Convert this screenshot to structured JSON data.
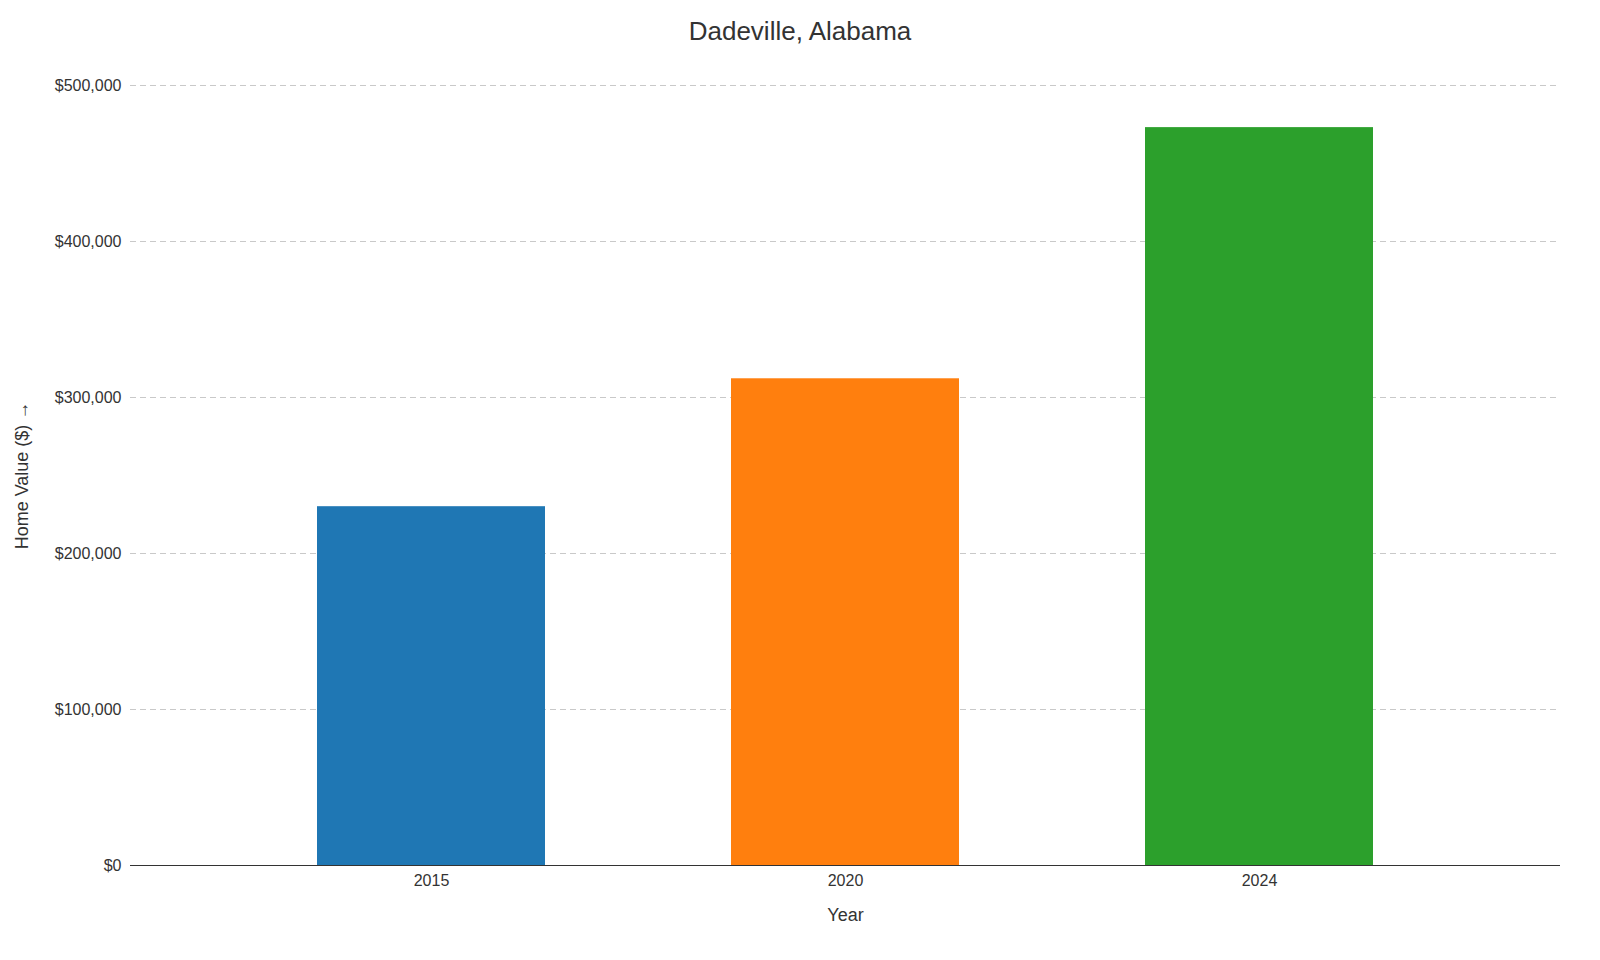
{
  "chart_data": {
    "type": "bar",
    "title": "Dadeville, Alabama",
    "categories": [
      "2015",
      "2020",
      "2024"
    ],
    "values": [
      230000,
      312000,
      473000
    ],
    "colors": [
      "#1f77b4",
      "#ff7f0e",
      "#2ca02c"
    ],
    "xlabel": "Year",
    "ylabel": "Home Value ($)",
    "ylim": [
      0,
      500000
    ],
    "yticks": [
      {
        "value": 0,
        "label": "$0"
      },
      {
        "value": 100000,
        "label": "$100,000"
      },
      {
        "value": 200000,
        "label": "$200,000"
      },
      {
        "value": 300000,
        "label": "$300,000"
      },
      {
        "value": 400000,
        "label": "$400,000"
      },
      {
        "value": 500000,
        "label": "$500,000"
      }
    ],
    "grid": true
  }
}
